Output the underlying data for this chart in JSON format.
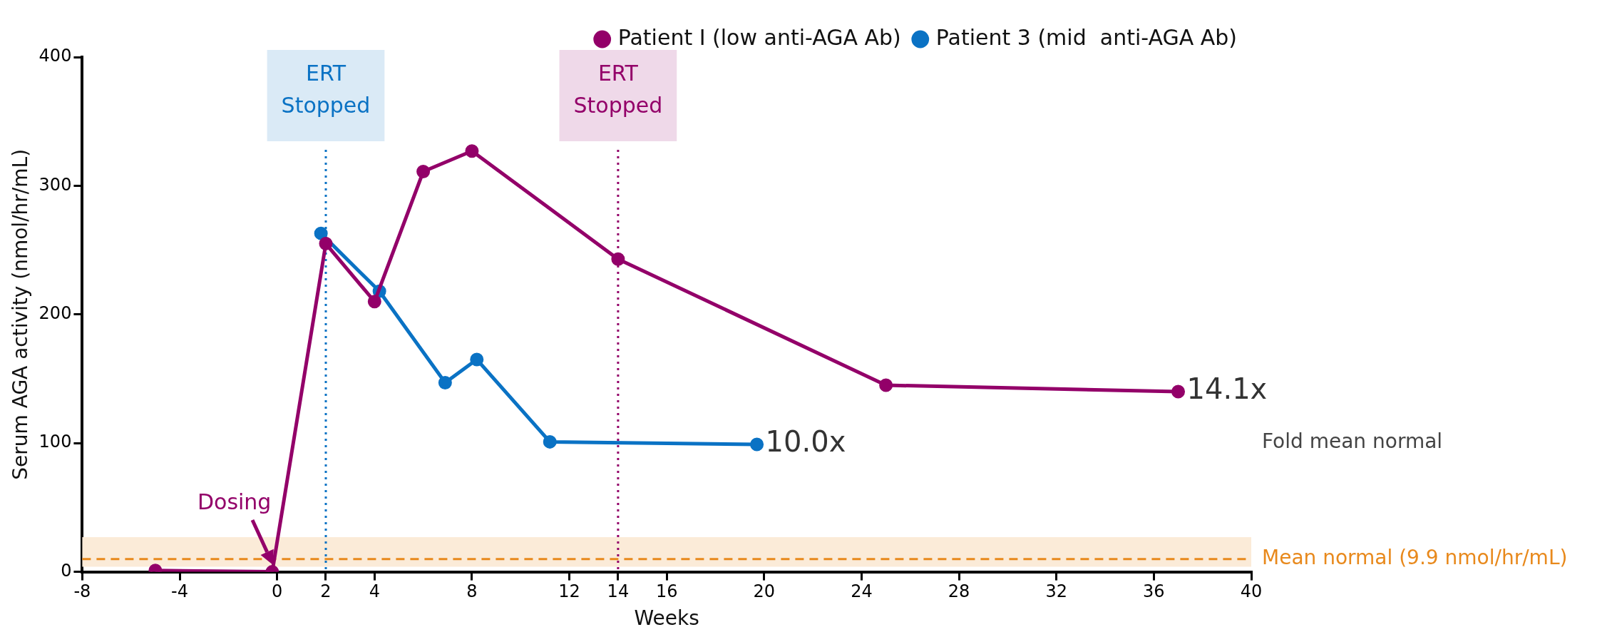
{
  "chart_data": {
    "type": "line",
    "xlabel": "Weeks",
    "ylabel": "Serum AGA activity (nmol/hr/mL)",
    "xlim": [
      -8,
      40
    ],
    "xticks": [
      -8,
      -4,
      0,
      2,
      4,
      8,
      12,
      14,
      16,
      20,
      24,
      28,
      32,
      36,
      40
    ],
    "ylim": [
      0,
      400
    ],
    "yticks": [
      0,
      100,
      200,
      300,
      400
    ],
    "grid": false,
    "legend": "top right",
    "marker": "circle",
    "line_style": "solid",
    "series": [
      {
        "name": "Patient I (low anti-AGA Ab)",
        "color": "#930069",
        "x": [
          -5,
          -0.2,
          2,
          4,
          6,
          8,
          14,
          25,
          37
        ],
        "values": [
          1,
          0,
          255,
          210,
          311,
          327,
          243,
          145,
          140
        ]
      },
      {
        "name": "Patient 3 (mid  anti-AGA Ab)",
        "color": "#0a72c4",
        "x": [
          1.8,
          4.2,
          6.9,
          8.2,
          11.2,
          19.7
        ],
        "values": [
          263,
          218,
          147,
          165,
          101,
          99
        ]
      }
    ],
    "ref_lines": [
      {
        "axis": "y",
        "value": 9.9,
        "label": "Mean normal (9.9 nmol/hr/mL)",
        "color": "#e8891c",
        "line_style": "dashed"
      },
      {
        "axis": "x",
        "value": 2,
        "label": "ERT\nStopped",
        "color": "#0a72c4",
        "line_style": "dotted"
      },
      {
        "axis": "x",
        "value": 14,
        "label": "ERT\nStopped",
        "color": "#930069",
        "line_style": "dotted"
      }
    ],
    "bands": [
      {
        "axis": "y",
        "from": 4,
        "to": 27,
        "color": "#fbebd8"
      }
    ],
    "annotations": [
      {
        "text": "10.0x",
        "x": 19.7,
        "y": 99
      },
      {
        "text": "14.1x",
        "x": 37,
        "y": 140
      },
      "Fold mean normal",
      {
        "text": "Dosing",
        "x": 0,
        "y": 0
      }
    ]
  }
}
